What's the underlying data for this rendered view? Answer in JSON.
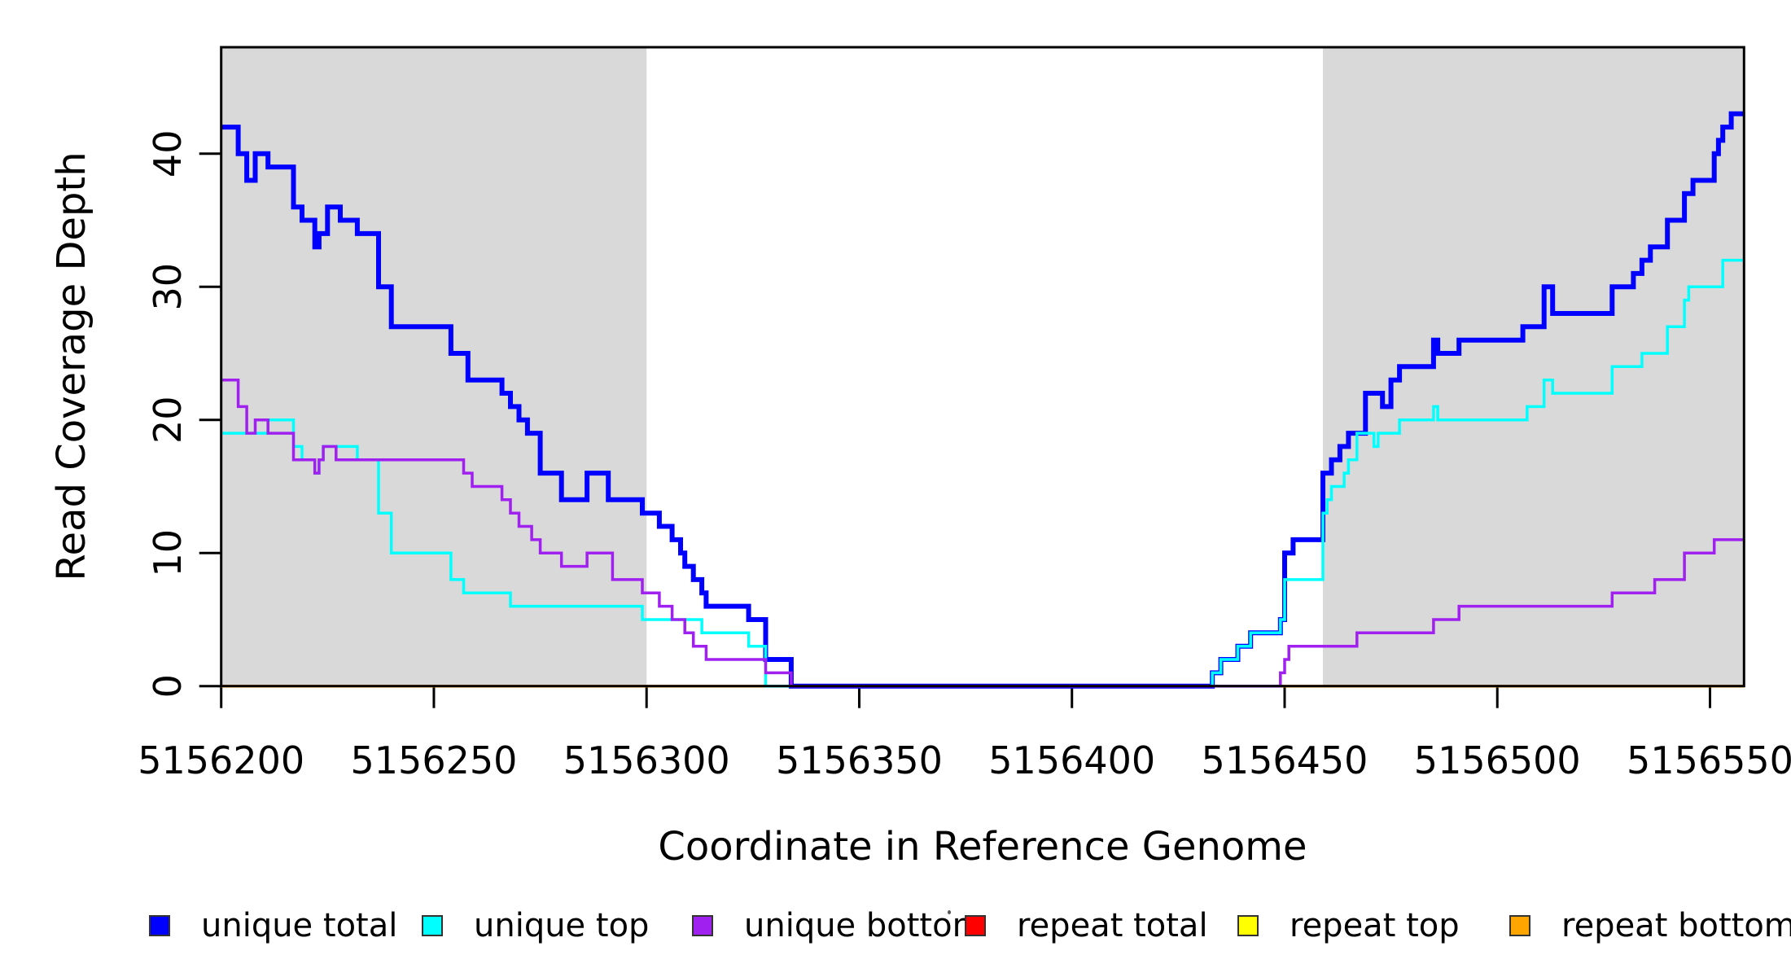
{
  "chart_data": {
    "type": "line",
    "subtype": "step-after-staircase",
    "title": "",
    "xlabel": "Coordinate in Reference Genome",
    "ylabel": "Read Coverage Depth",
    "xlim": [
      5156200,
      5156558
    ],
    "ylim": [
      0,
      48
    ],
    "grid": "off",
    "x_ticks": [
      5156200,
      5156250,
      5156300,
      5156350,
      5156400,
      5156450,
      5156500,
      5156550
    ],
    "y_ticks": [
      0,
      10,
      20,
      30,
      40
    ],
    "colors": {
      "axis": "#000000",
      "background": "#ffffff",
      "shaded_band": "#d9d9d9",
      "unique_total": "#0000ff",
      "unique_top": "#00ffff",
      "unique_bottom": "#a020f0",
      "repeat_total": "#ff0000",
      "repeat_top": "#ffff00",
      "repeat_bottom": "#ffa500"
    },
    "shaded_regions": [
      {
        "name": "left-gray-band",
        "x0": 5156200,
        "x1": 5156300
      },
      {
        "name": "right-gray-band",
        "x0": 5156459,
        "x1": 5156558
      }
    ],
    "legend_position": "bottom",
    "legend": [
      {
        "label": "unique total",
        "color": "#0000ff"
      },
      {
        "label": "unique top",
        "color": "#00ffff"
      },
      {
        "label": "unique bottom",
        "color": "#a020f0"
      },
      {
        "label": "repeat total",
        "color": "#ff0000"
      },
      {
        "label": "repeat top",
        "color": "#ffff00"
      },
      {
        "label": "repeat bottom",
        "color": "#ffa500"
      }
    ],
    "series": [
      {
        "name": "repeat total",
        "color": "#ff0000",
        "width": 3.5,
        "points": [
          [
            5156200,
            0
          ],
          [
            5156558,
            0
          ]
        ]
      },
      {
        "name": "repeat top",
        "color": "#ffff00",
        "width": 3.5,
        "points": [
          [
            5156200,
            0
          ],
          [
            5156558,
            0
          ]
        ]
      },
      {
        "name": "repeat bottom",
        "color": "#ffa500",
        "width": 3.5,
        "points": [
          [
            5156200,
            0
          ],
          [
            5156558,
            0
          ]
        ]
      },
      {
        "name": "unique total",
        "color": "#0000ff",
        "width": 6,
        "points": [
          [
            5156200,
            42
          ],
          [
            5156204,
            40
          ],
          [
            5156206,
            38
          ],
          [
            5156208,
            40
          ],
          [
            5156211,
            39
          ],
          [
            5156217,
            36
          ],
          [
            5156219,
            35
          ],
          [
            5156222,
            33
          ],
          [
            5156223,
            34
          ],
          [
            5156225,
            36
          ],
          [
            5156228,
            35
          ],
          [
            5156232,
            34
          ],
          [
            5156237,
            30
          ],
          [
            5156240,
            27
          ],
          [
            5156254,
            25
          ],
          [
            5156258,
            23
          ],
          [
            5156266,
            22
          ],
          [
            5156268,
            21
          ],
          [
            5156270,
            20
          ],
          [
            5156272,
            19
          ],
          [
            5156275,
            16
          ],
          [
            5156280,
            14
          ],
          [
            5156286,
            16
          ],
          [
            5156291,
            14
          ],
          [
            5156299,
            13
          ],
          [
            5156303,
            12
          ],
          [
            5156306,
            11
          ],
          [
            5156308,
            10
          ],
          [
            5156309,
            9
          ],
          [
            5156311,
            8
          ],
          [
            5156313,
            7
          ],
          [
            5156314,
            6
          ],
          [
            5156324,
            5
          ],
          [
            5156328,
            2
          ],
          [
            5156334,
            0
          ],
          [
            5156433,
            1
          ],
          [
            5156435,
            2
          ],
          [
            5156439,
            3
          ],
          [
            5156442,
            4
          ],
          [
            5156449,
            5
          ],
          [
            5156450,
            10
          ],
          [
            5156452,
            11
          ],
          [
            5156459,
            16
          ],
          [
            5156461,
            17
          ],
          [
            5156463,
            18
          ],
          [
            5156465,
            19
          ],
          [
            5156469,
            22
          ],
          [
            5156473,
            21
          ],
          [
            5156475,
            23
          ],
          [
            5156477,
            24
          ],
          [
            5156485,
            26
          ],
          [
            5156486,
            25
          ],
          [
            5156491,
            26
          ],
          [
            5156506,
            27
          ],
          [
            5156511,
            30
          ],
          [
            5156513,
            28
          ],
          [
            5156527,
            30
          ],
          [
            5156532,
            31
          ],
          [
            5156534,
            32
          ],
          [
            5156536,
            33
          ],
          [
            5156540,
            35
          ],
          [
            5156544,
            37
          ],
          [
            5156546,
            38
          ],
          [
            5156551,
            40
          ],
          [
            5156552,
            41
          ],
          [
            5156553,
            42
          ],
          [
            5156555,
            43
          ],
          [
            5156558,
            43
          ]
        ]
      },
      {
        "name": "unique top",
        "color": "#00ffff",
        "width": 3.5,
        "points": [
          [
            5156200,
            19
          ],
          [
            5156211,
            20
          ],
          [
            5156217,
            18
          ],
          [
            5156219,
            17
          ],
          [
            5156222,
            16
          ],
          [
            5156223,
            17
          ],
          [
            5156224,
            18
          ],
          [
            5156232,
            17
          ],
          [
            5156237,
            13
          ],
          [
            5156240,
            10
          ],
          [
            5156254,
            8
          ],
          [
            5156257,
            7
          ],
          [
            5156268,
            6
          ],
          [
            5156299,
            5
          ],
          [
            5156313,
            4
          ],
          [
            5156324,
            3
          ],
          [
            5156328,
            0
          ],
          [
            5156433,
            1
          ],
          [
            5156435,
            2
          ],
          [
            5156439,
            3
          ],
          [
            5156442,
            4
          ],
          [
            5156449,
            5
          ],
          [
            5156450,
            8
          ],
          [
            5156459,
            13
          ],
          [
            5156460,
            14
          ],
          [
            5156461,
            15
          ],
          [
            5156464,
            16
          ],
          [
            5156465,
            17
          ],
          [
            5156467,
            19
          ],
          [
            5156471,
            18
          ],
          [
            5156472,
            19
          ],
          [
            5156477,
            20
          ],
          [
            5156485,
            21
          ],
          [
            5156486,
            20
          ],
          [
            5156507,
            21
          ],
          [
            5156511,
            23
          ],
          [
            5156513,
            22
          ],
          [
            5156527,
            24
          ],
          [
            5156534,
            25
          ],
          [
            5156540,
            27
          ],
          [
            5156544,
            29
          ],
          [
            5156545,
            30
          ],
          [
            5156553,
            32
          ],
          [
            5156558,
            32
          ]
        ]
      },
      {
        "name": "unique bottom",
        "color": "#a020f0",
        "width": 3.5,
        "points": [
          [
            5156200,
            23
          ],
          [
            5156204,
            21
          ],
          [
            5156206,
            19
          ],
          [
            5156208,
            20
          ],
          [
            5156211,
            19
          ],
          [
            5156217,
            17
          ],
          [
            5156222,
            16
          ],
          [
            5156223,
            17
          ],
          [
            5156224,
            18
          ],
          [
            5156227,
            17
          ],
          [
            5156257,
            16
          ],
          [
            5156259,
            15
          ],
          [
            5156266,
            14
          ],
          [
            5156268,
            13
          ],
          [
            5156270,
            12
          ],
          [
            5156273,
            11
          ],
          [
            5156275,
            10
          ],
          [
            5156280,
            9
          ],
          [
            5156286,
            10
          ],
          [
            5156292,
            8
          ],
          [
            5156299,
            7
          ],
          [
            5156303,
            6
          ],
          [
            5156306,
            5
          ],
          [
            5156309,
            4
          ],
          [
            5156311,
            3
          ],
          [
            5156314,
            2
          ],
          [
            5156328,
            1
          ],
          [
            5156334,
            0
          ],
          [
            5156449,
            1
          ],
          [
            5156450,
            2
          ],
          [
            5156451,
            3
          ],
          [
            5156467,
            4
          ],
          [
            5156485,
            5
          ],
          [
            5156491,
            6
          ],
          [
            5156527,
            7
          ],
          [
            5156537,
            8
          ],
          [
            5156544,
            10
          ],
          [
            5156551,
            11
          ],
          [
            5156558,
            11
          ]
        ]
      }
    ]
  }
}
